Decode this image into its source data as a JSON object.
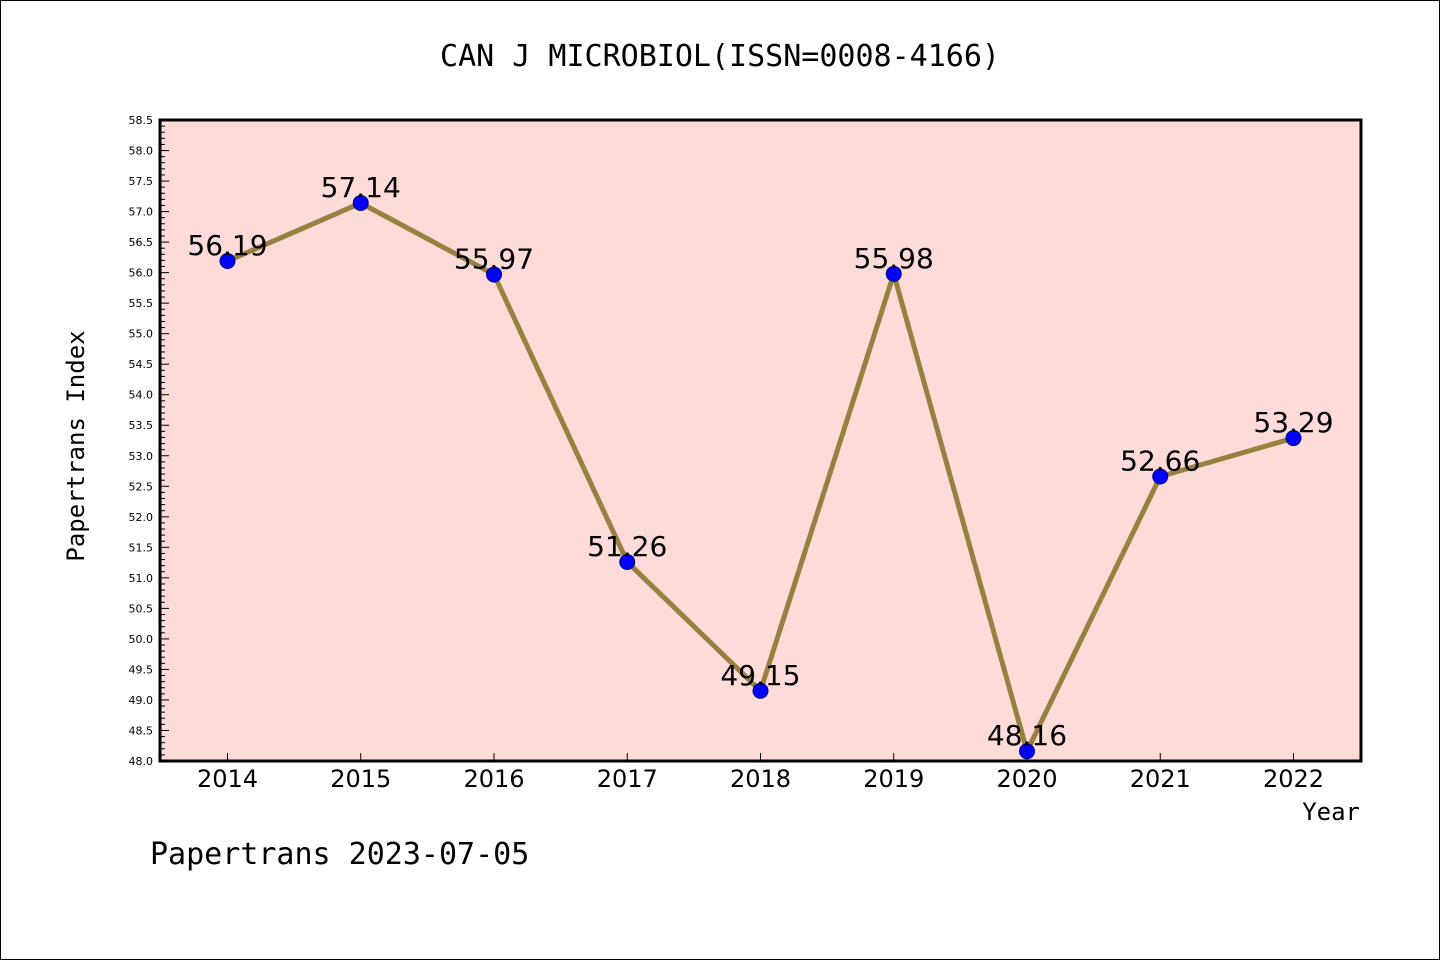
{
  "chart_data": {
    "type": "line",
    "title": "CAN J MICROBIOL(ISSN=0008-4166)",
    "xlabel": "Year",
    "ylabel": "Papertrans Index",
    "categories": [
      "2014",
      "2015",
      "2016",
      "2017",
      "2018",
      "2019",
      "2020",
      "2021",
      "2022"
    ],
    "series": [
      {
        "values": [
          56.19,
          57.14,
          55.97,
          51.26,
          49.15,
          55.98,
          48.16,
          52.66,
          53.29
        ],
        "labels": [
          "56.19",
          "57.14",
          "55.97",
          "51.26",
          "49.15",
          "55.98",
          "48.16",
          "52.66",
          "53.29"
        ],
        "line_color": "#9a8040",
        "marker_color": "#0000ff"
      }
    ],
    "ylim": [
      48.0,
      58.5
    ],
    "yticks": [
      "48.0",
      "48.5",
      "49.0",
      "49.5",
      "50.0",
      "50.5",
      "51.0",
      "51.5",
      "52.0",
      "52.5",
      "53.0",
      "53.5",
      "54.0",
      "54.5",
      "55.0",
      "55.5",
      "56.0",
      "56.5",
      "57.0",
      "57.5",
      "58.0",
      "58.5"
    ],
    "grid": false,
    "plot_background": "#fddbd9"
  },
  "footer": "Papertrans 2023-07-05"
}
